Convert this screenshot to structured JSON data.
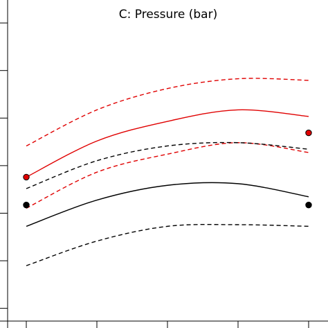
{
  "chart_data": {
    "type": "line",
    "title": "C: Pressure (bar)",
    "xlabel": "",
    "ylabel": "",
    "xlim": [
      0,
      1
    ],
    "ylim": [
      0,
      1
    ],
    "grid": false,
    "legend": "none",
    "x_ticks": [
      0,
      0.25,
      0.5,
      0.75,
      1.0
    ],
    "y_ticks": [
      0.06,
      0.205,
      0.35,
      0.495,
      0.64,
      0.785,
      0.93
    ],
    "series": [
      {
        "color": "#e00000",
        "dash": "solid",
        "x": [
          0,
          0.25,
          0.5,
          0.75,
          1.0
        ],
        "y": [
          0.46,
          0.57,
          0.63,
          0.665,
          0.645
        ]
      },
      {
        "color": "#e00000",
        "dash": "dashed",
        "x": [
          0,
          0.25,
          0.5,
          0.75,
          1.0
        ],
        "y": [
          0.555,
          0.665,
          0.73,
          0.76,
          0.755
        ]
      },
      {
        "color": "#e00000",
        "dash": "dashed",
        "x": [
          0,
          0.25,
          0.5,
          0.75,
          1.0
        ],
        "y": [
          0.365,
          0.475,
          0.53,
          0.565,
          0.535
        ]
      },
      {
        "color": "#000000",
        "dash": "solid",
        "x": [
          0,
          0.25,
          0.5,
          0.75,
          1.0
        ],
        "y": [
          0.31,
          0.39,
          0.435,
          0.44,
          0.4
        ]
      },
      {
        "color": "#000000",
        "dash": "dashed",
        "x": [
          0,
          0.25,
          0.5,
          0.75,
          1.0
        ],
        "y": [
          0.425,
          0.51,
          0.555,
          0.565,
          0.545
        ]
      },
      {
        "color": "#000000",
        "dash": "dashed",
        "x": [
          0,
          0.25,
          0.5,
          0.75,
          1.0
        ],
        "y": [
          0.19,
          0.265,
          0.31,
          0.315,
          0.31
        ]
      }
    ],
    "points": [
      {
        "x": 0,
        "y": 0.46,
        "fill": "#e00000"
      },
      {
        "x": 1.0,
        "y": 0.595,
        "fill": "#e00000"
      },
      {
        "x": 0,
        "y": 0.375,
        "fill": "#000000"
      },
      {
        "x": 1.0,
        "y": 0.375,
        "fill": "#000000"
      }
    ]
  }
}
